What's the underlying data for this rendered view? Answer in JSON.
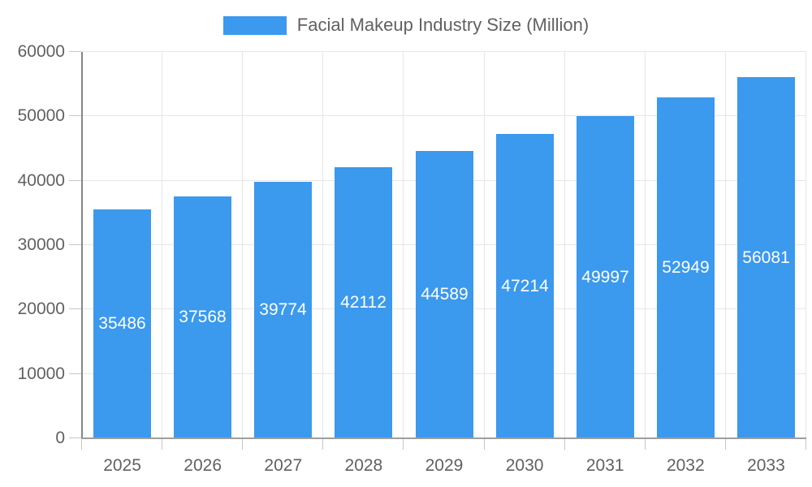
{
  "chart_data": {
    "type": "bar",
    "title": "Facial Makeup Industry Size (Million)",
    "categories": [
      "2025",
      "2026",
      "2027",
      "2028",
      "2029",
      "2030",
      "2031",
      "2032",
      "2033"
    ],
    "series": [
      {
        "name": "Facial Makeup Industry Size (Million)",
        "values": [
          35486,
          37568,
          39774,
          42112,
          44589,
          47214,
          49997,
          52949,
          56081
        ],
        "color": "#3B99EE"
      }
    ],
    "xlabel": "",
    "ylabel": "",
    "ylim": [
      0,
      60000
    ],
    "yticks": [
      0,
      10000,
      20000,
      30000,
      40000,
      50000,
      60000
    ],
    "grid": true,
    "legend_position": "top",
    "bar_label_color": "#FFFFFF",
    "colors": {
      "bar": "#3B99EE",
      "axis_text": "#616161",
      "grid_line": "#E6E6E6",
      "tick": "#C6C6C6",
      "y_axis_line": "#878787",
      "x_axis_line": "#9E9E9E",
      "background": "#FFFFFF"
    }
  }
}
